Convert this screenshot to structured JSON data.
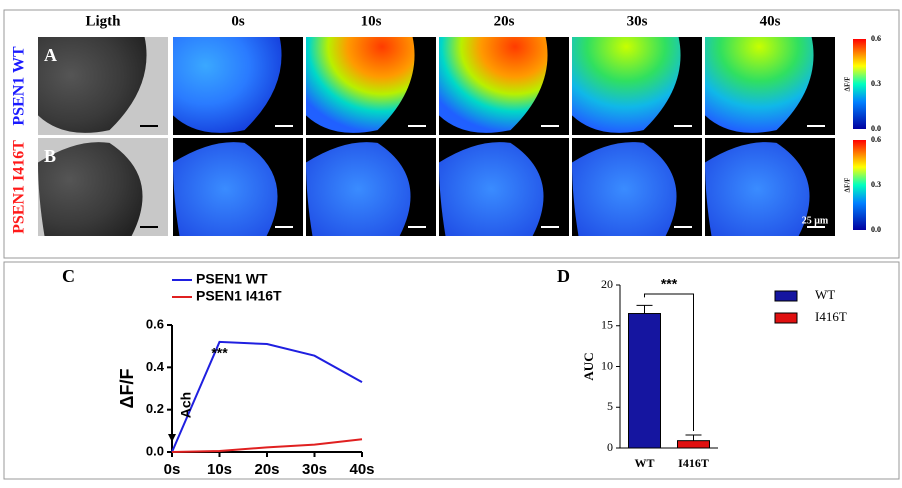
{
  "figure": {
    "headers": [
      "Ligth",
      "0s",
      "10s",
      "20s",
      "30s",
      "40s"
    ],
    "rows": [
      {
        "letter": "A",
        "label": "PSEN1 WT",
        "color": "#1a1aff"
      },
      {
        "letter": "B",
        "label": "PSEN1 I416T",
        "color": "#ff1a1a"
      }
    ],
    "colorbar": {
      "label": "ΔF/F",
      "ticks": [
        0.6,
        0.3,
        {
          "value": 0,
          "label": "0.0"
        }
      ],
      "lim": [
        0,
        0.6
      ]
    },
    "scale_label": "25 μm",
    "letter_c": "C",
    "letter_d": "D"
  },
  "chart_data": [
    {
      "type": "line",
      "categories": [
        "0s",
        "10s",
        "20s",
        "30s",
        "40s"
      ],
      "ylabel": "ΔF/F",
      "series": [
        {
          "name": "PSEN1 WT",
          "color": "#1f1fe0",
          "values": [
            0,
            0.52,
            0.51,
            0.455,
            0.33
          ]
        },
        {
          "name": "PSEN1 I416T",
          "color": "#e02020",
          "values": [
            0,
            0.005,
            0.022,
            0.035,
            0.06
          ]
        }
      ],
      "ylim": [
        0,
        0.6
      ],
      "yticks": [
        {
          "value": 0,
          "label": "0.0"
        },
        0.2,
        0.4,
        0.6
      ],
      "annotations": [
        "***",
        "Ach"
      ]
    },
    {
      "type": "bar",
      "categories": [
        "WT",
        "I416T"
      ],
      "values": [
        16.5,
        0.9
      ],
      "errors": [
        1,
        0.7
      ],
      "colors": [
        "#1515a0",
        "#e01010"
      ],
      "ylabel": "AUC",
      "ylim": [
        0,
        20
      ],
      "yticks": [
        0,
        5,
        10,
        15,
        20
      ],
      "annotations": [
        "***"
      ]
    }
  ]
}
